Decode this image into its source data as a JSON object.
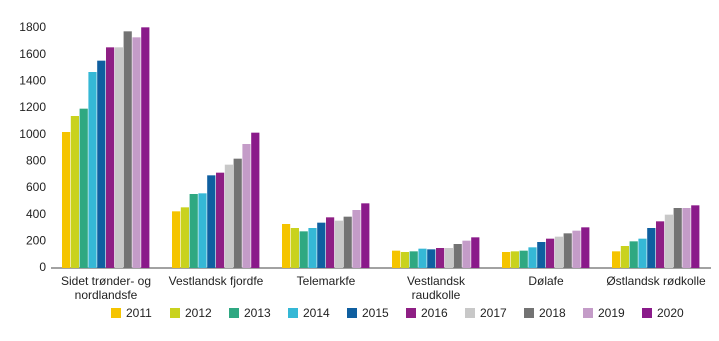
{
  "chart_data": {
    "type": "bar",
    "categories": [
      "Sidet trønder- og nordlandsfe",
      "Vestlandsk fjordfe",
      "Telemarkfe",
      "Vestlandsk raudkolle",
      "Dølafe",
      "Østlandsk rødkolle"
    ],
    "series": [
      {
        "name": "2011",
        "color": "#f5c400",
        "values": [
          1020,
          425,
          330,
          130,
          120,
          125
        ]
      },
      {
        "name": "2012",
        "color": "#c9d21e",
        "values": [
          1140,
          455,
          300,
          120,
          125,
          165
        ]
      },
      {
        "name": "2013",
        "color": "#2fa882",
        "values": [
          1195,
          555,
          275,
          125,
          130,
          200
        ]
      },
      {
        "name": "2014",
        "color": "#35b8d6",
        "values": [
          1470,
          560,
          300,
          145,
          155,
          220
        ]
      },
      {
        "name": "2015",
        "color": "#0f5fa0",
        "values": [
          1555,
          695,
          340,
          140,
          195,
          300
        ]
      },
      {
        "name": "2016",
        "color": "#8e1f84",
        "values": [
          1655,
          715,
          380,
          150,
          220,
          350
        ]
      },
      {
        "name": "2017",
        "color": "#c8c8c8",
        "values": [
          1655,
          775,
          355,
          150,
          235,
          400
        ]
      },
      {
        "name": "2018",
        "color": "#737373",
        "values": [
          1775,
          820,
          385,
          180,
          260,
          450
        ]
      },
      {
        "name": "2019",
        "color": "#c49cc8",
        "values": [
          1730,
          930,
          435,
          205,
          280,
          450
        ]
      },
      {
        "name": "2020",
        "color": "#8a1a8a",
        "values": [
          1805,
          1015,
          485,
          230,
          305,
          470
        ]
      }
    ],
    "ylim": [
      0,
      1800
    ],
    "yticks": [
      0,
      200,
      400,
      600,
      800,
      1000,
      1200,
      1400,
      1600,
      1800
    ],
    "grid": false,
    "legend": "bottom"
  }
}
